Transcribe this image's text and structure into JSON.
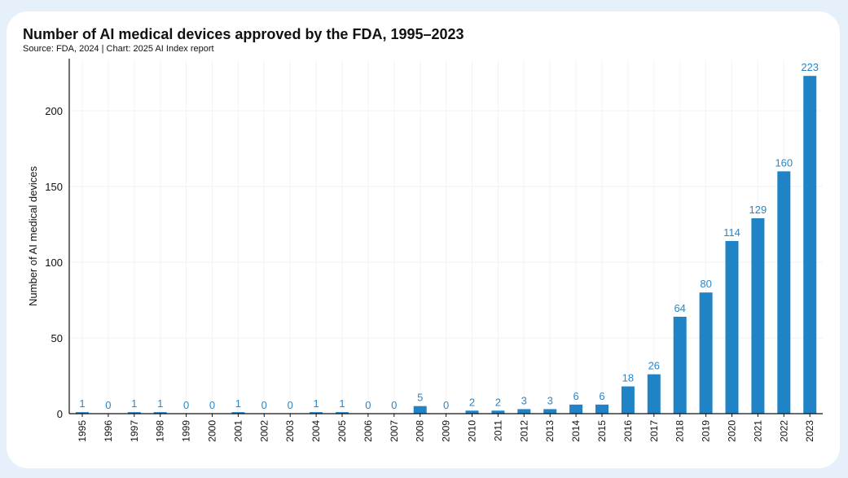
{
  "chart_data": {
    "type": "bar",
    "title": "Number of AI medical devices approved by the FDA, 1995–2023",
    "subtitle": "Source: FDA, 2024 | Chart: 2025 AI Index report",
    "xlabel": "",
    "ylabel": "Number of AI medical devices",
    "ylim": [
      0,
      235
    ],
    "yticks": [
      0,
      50,
      100,
      150,
      200
    ],
    "grid": true,
    "categories": [
      "1995",
      "1996",
      "1997",
      "1998",
      "1999",
      "2000",
      "2001",
      "2002",
      "2003",
      "2004",
      "2005",
      "2006",
      "2007",
      "2008",
      "2009",
      "2010",
      "2011",
      "2012",
      "2013",
      "2014",
      "2015",
      "2016",
      "2017",
      "2018",
      "2019",
      "2020",
      "2021",
      "2022",
      "2023"
    ],
    "values": [
      1,
      0,
      1,
      1,
      0,
      0,
      1,
      0,
      0,
      1,
      1,
      0,
      0,
      5,
      0,
      2,
      2,
      3,
      3,
      6,
      6,
      18,
      26,
      64,
      80,
      114,
      129,
      160,
      223
    ],
    "bar_color": "#1f83c5",
    "label_color": "#2a86c8"
  }
}
